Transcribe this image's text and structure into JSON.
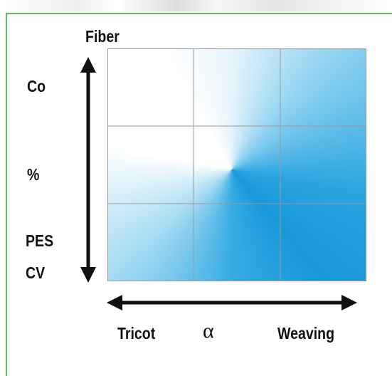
{
  "axis_labels": {
    "top": "Fiber",
    "left": [
      "Co",
      "%",
      "PES",
      "CV"
    ],
    "bottom": [
      "Tricot",
      "α",
      "Weaving"
    ]
  }
}
